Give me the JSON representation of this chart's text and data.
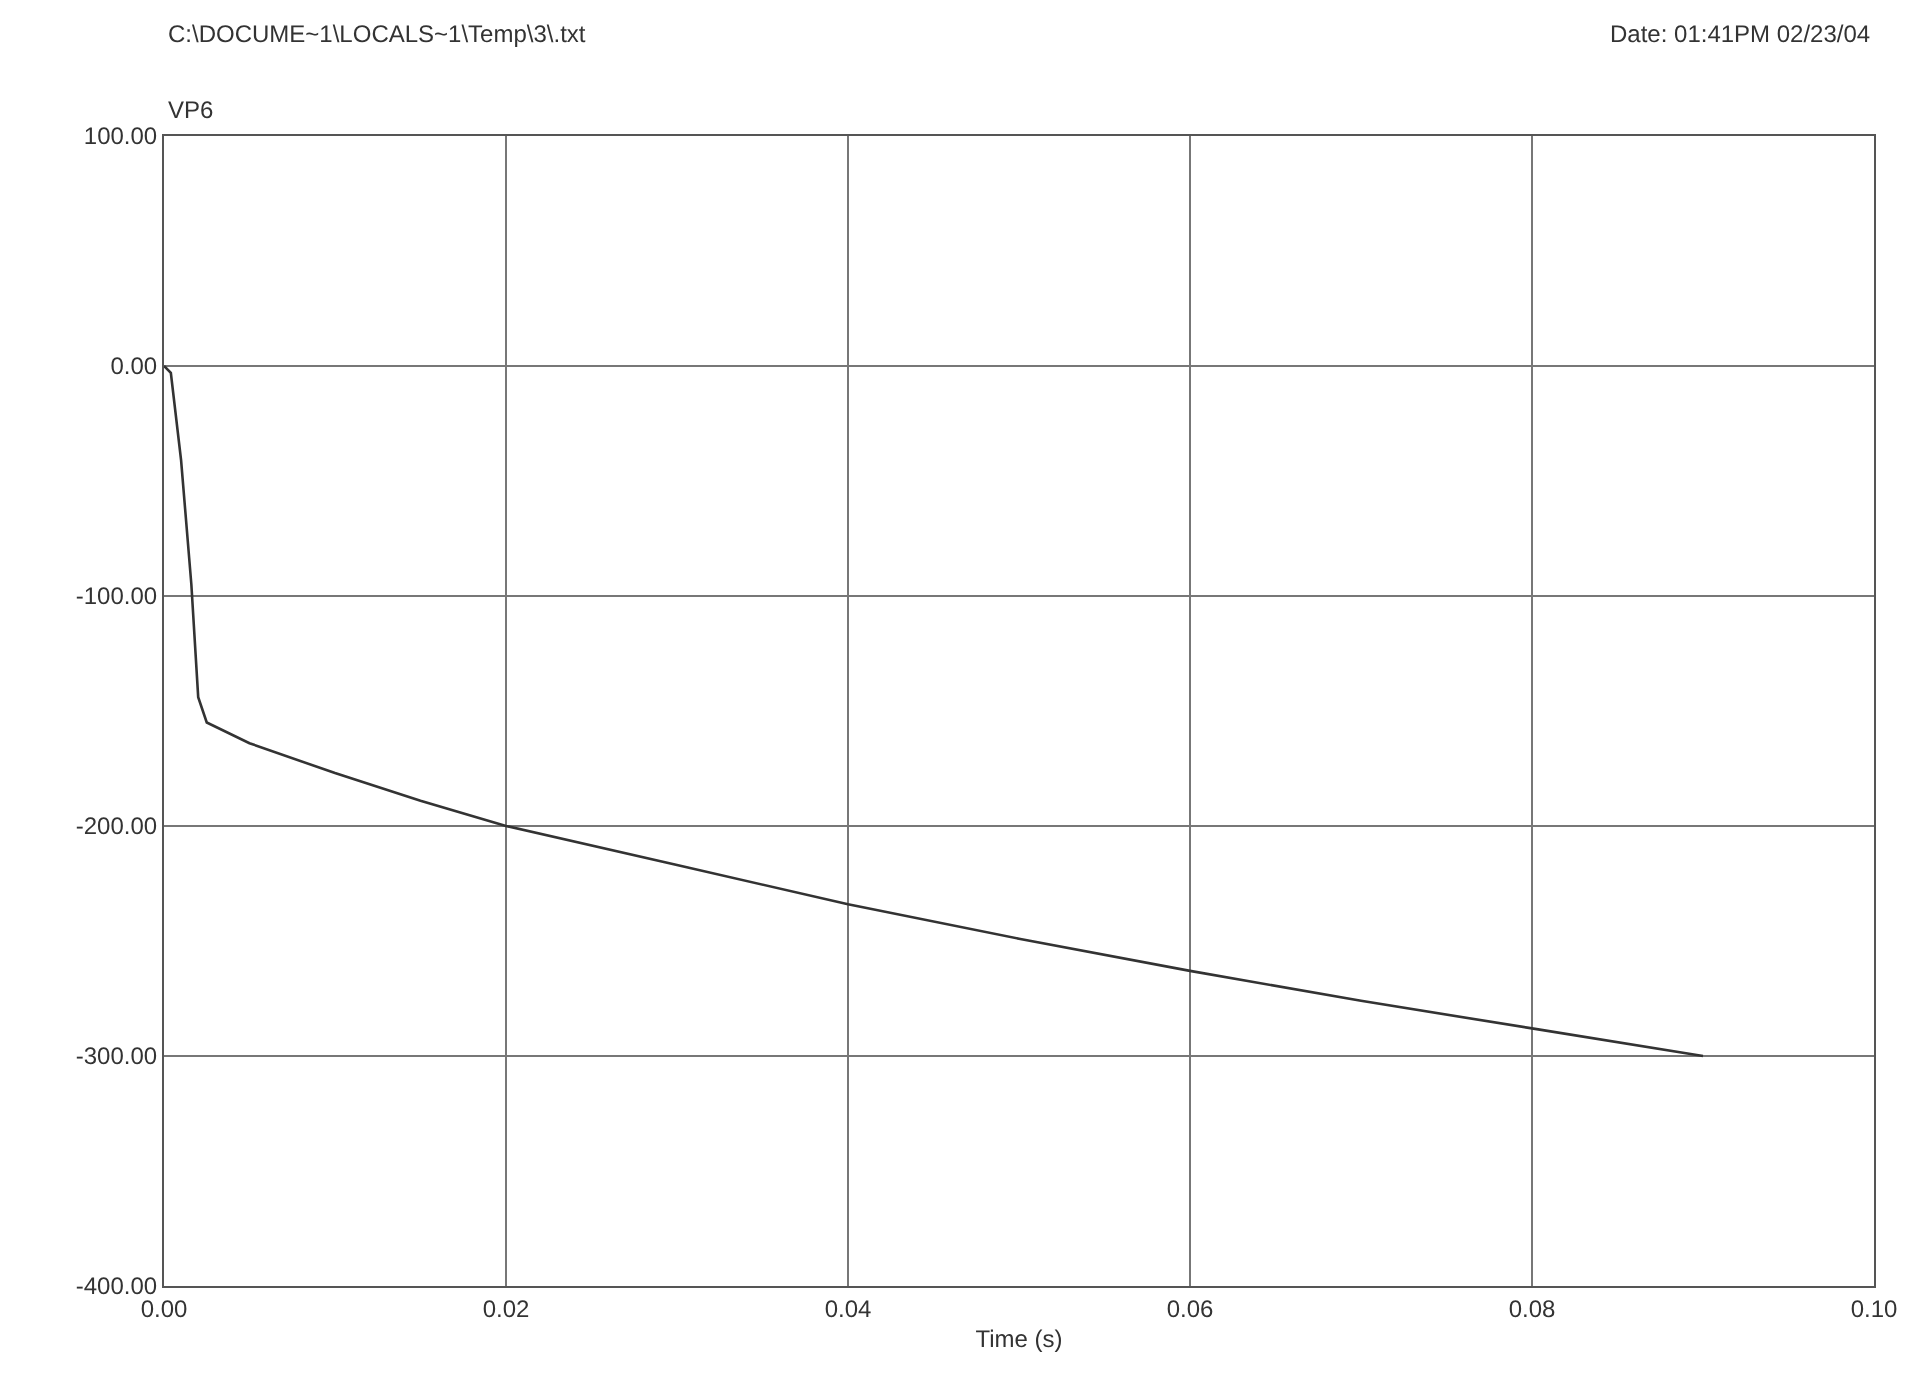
{
  "chart_data": {
    "type": "line",
    "title": "C:\\DOCUME~1\\LOCALS~1\\Temp\\3\\.txt",
    "subtitle": "Date: 01:41PM 02/23/04",
    "xlabel": "Time (s)",
    "ylabel": "VP6",
    "series": [
      {
        "color": "#333333",
        "x": [
          0,
          0.0004,
          0.001,
          0.0016,
          0.002,
          0.0025,
          0.005,
          0.01,
          0.015,
          0.02,
          0.03,
          0.04,
          0.05,
          0.06,
          0.07,
          0.08,
          0.09
        ],
        "values": [
          0,
          -3,
          -41,
          -95,
          -144,
          -155,
          -164,
          -177,
          -189,
          -200,
          -217,
          -234,
          -249,
          -263,
          -276,
          -288,
          -300
        ]
      }
    ],
    "xlim": [
      0,
      0.1
    ],
    "ylim": [
      -400,
      100
    ],
    "xticks": [
      {
        "value": 0,
        "label": "0.00"
      },
      {
        "value": 0.02,
        "label": "0.02"
      },
      {
        "value": 0.04,
        "label": "0.04"
      },
      {
        "value": 0.06,
        "label": "0.06"
      },
      {
        "value": 0.08,
        "label": "0.08"
      },
      {
        "value": 0.1,
        "label": "0.10"
      }
    ],
    "yticks": [
      {
        "value": -400,
        "label": "-400.00"
      },
      {
        "value": -300,
        "label": "-300.00"
      },
      {
        "value": -200,
        "label": "-200.00"
      },
      {
        "value": -100,
        "label": "-100.00"
      },
      {
        "value": 0,
        "label": "0.00"
      },
      {
        "value": 100,
        "label": "100.00"
      }
    ],
    "grid": true,
    "legend": false
  }
}
